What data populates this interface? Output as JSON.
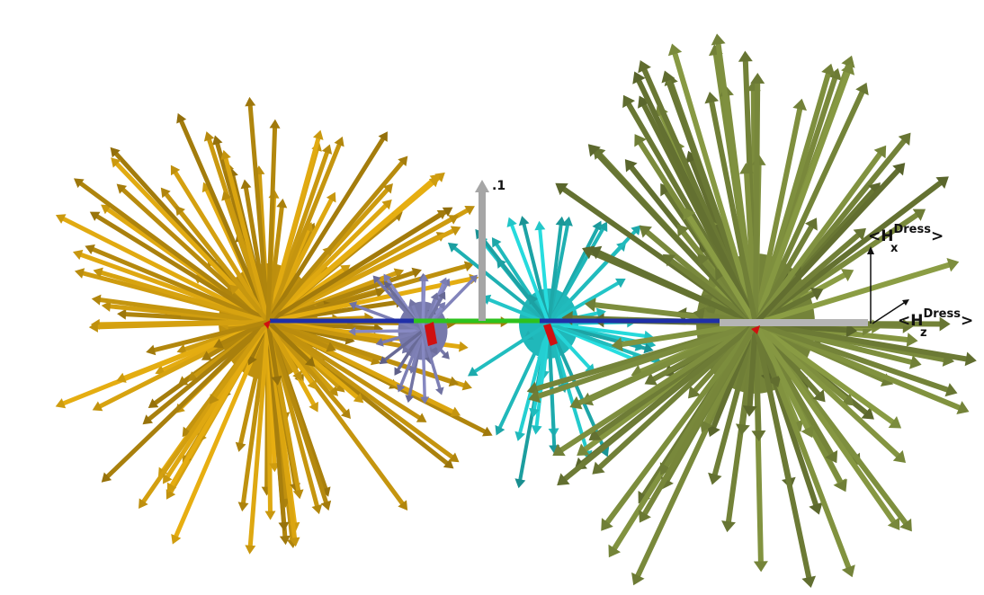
{
  "scale_bar": {
    "label": ".1",
    "color": "#a6a6a6"
  },
  "axes": {
    "x": {
      "prefix": "<H",
      "sub": "x",
      "sup": "Dress",
      "suffix": ">",
      "color": "#111111"
    },
    "z": {
      "prefix": "<H",
      "sub": "z",
      "sup": "Dress",
      "suffix": ">",
      "color": "#111111"
    }
  },
  "bonds": [
    {
      "name": "bond-left-blue",
      "color": "#1f2fa8"
    },
    {
      "name": "bond-center-green",
      "color": "#2ec21e"
    },
    {
      "name": "bond-right-blue",
      "color": "#1f2fa8"
    },
    {
      "name": "bond-right-gray",
      "color": "#b5b5b5"
    }
  ],
  "clusters": [
    {
      "name": "gold-cluster",
      "color": "#c9980f",
      "count": 150
    },
    {
      "name": "lavender-cluster",
      "color": "#7d7fb4",
      "count": 28
    },
    {
      "name": "cyan-cluster",
      "color": "#22c2c4",
      "count": 40
    },
    {
      "name": "olive-cluster",
      "color": "#7a8a3c",
      "count": 130
    }
  ],
  "core_color": "#d01010"
}
